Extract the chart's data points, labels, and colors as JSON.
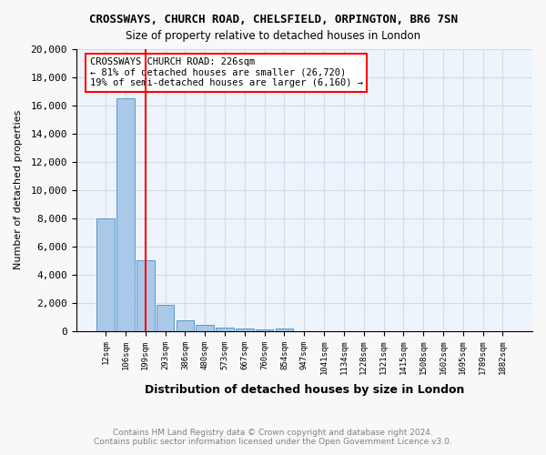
{
  "title": "CROSSWAYS, CHURCH ROAD, CHELSFIELD, ORPINGTON, BR6 7SN",
  "subtitle": "Size of property relative to detached houses in London",
  "xlabel": "Distribution of detached houses by size in London",
  "ylabel": "Number of detached properties",
  "footnote1": "Contains HM Land Registry data © Crown copyright and database right 2024.",
  "footnote2": "Contains public sector information licensed under the Open Government Licence v3.0.",
  "bar_labels": [
    "12sqm",
    "106sqm",
    "199sqm",
    "293sqm",
    "386sqm",
    "480sqm",
    "573sqm",
    "667sqm",
    "760sqm",
    "854sqm",
    "947sqm",
    "1041sqm",
    "1134sqm",
    "1228sqm",
    "1321sqm",
    "1415sqm",
    "1508sqm",
    "1602sqm",
    "1695sqm",
    "1789sqm",
    "1882sqm"
  ],
  "bar_values": [
    8000,
    16500,
    5000,
    1850,
    750,
    400,
    200,
    150,
    100,
    150,
    0,
    0,
    0,
    0,
    0,
    0,
    0,
    0,
    0,
    0,
    0
  ],
  "bar_color": "#aac8e8",
  "bar_edge_color": "#5599cc",
  "red_line_x": 2,
  "ylim": [
    0,
    20000
  ],
  "yticks": [
    0,
    2000,
    4000,
    6000,
    8000,
    10000,
    12000,
    14000,
    16000,
    18000,
    20000
  ],
  "annotation_text": "CROSSWAYS CHURCH ROAD: 226sqm\n← 81% of detached houses are smaller (26,720)\n19% of semi-detached houses are larger (6,160) →",
  "grid_color": "#d0dce8",
  "plot_bg_color": "#eef4fb",
  "fig_bg_color": "#f8f8f8"
}
